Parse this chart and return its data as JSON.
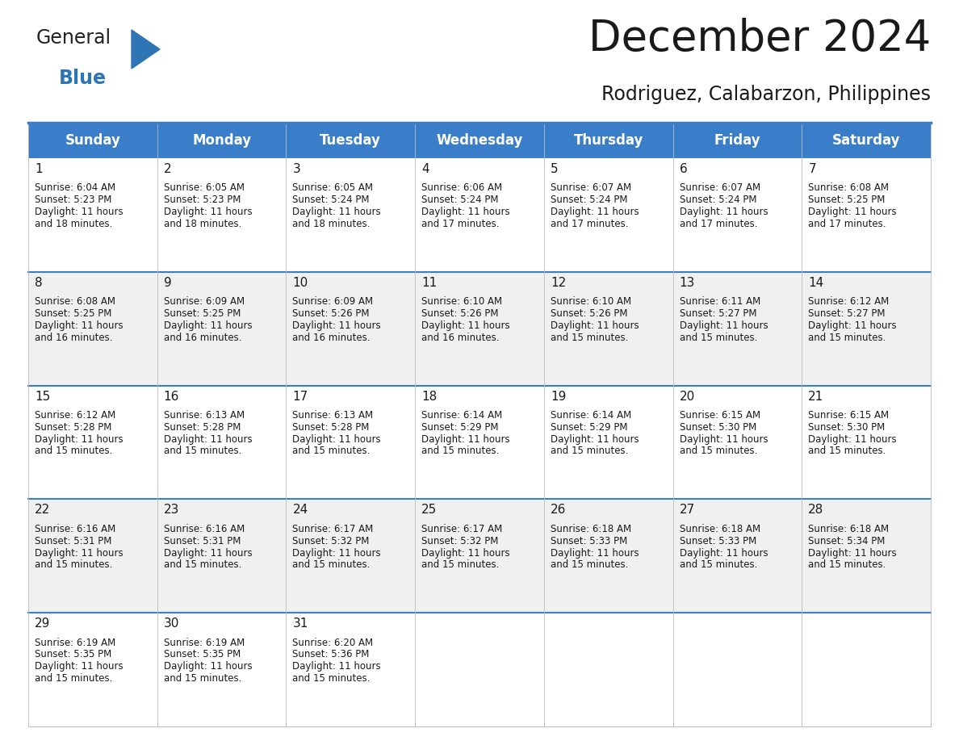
{
  "title": "December 2024",
  "subtitle": "Rodriguez, Calabarzon, Philippines",
  "header_color": "#3A7DC9",
  "header_text_color": "#FFFFFF",
  "cell_bg_white": "#FFFFFF",
  "cell_bg_grey": "#F0F0F0",
  "border_color": "#3A7DC9",
  "grid_line_color": "#BBBBBB",
  "text_color": "#1a1a1a",
  "day_headers": [
    "Sunday",
    "Monday",
    "Tuesday",
    "Wednesday",
    "Thursday",
    "Friday",
    "Saturday"
  ],
  "days_data": [
    {
      "day": 1,
      "col": 0,
      "row": 0,
      "sunrise": "6:04 AM",
      "sunset": "5:23 PM",
      "daylight_hours": 11,
      "daylight_minutes": 18
    },
    {
      "day": 2,
      "col": 1,
      "row": 0,
      "sunrise": "6:05 AM",
      "sunset": "5:23 PM",
      "daylight_hours": 11,
      "daylight_minutes": 18
    },
    {
      "day": 3,
      "col": 2,
      "row": 0,
      "sunrise": "6:05 AM",
      "sunset": "5:24 PM",
      "daylight_hours": 11,
      "daylight_minutes": 18
    },
    {
      "day": 4,
      "col": 3,
      "row": 0,
      "sunrise": "6:06 AM",
      "sunset": "5:24 PM",
      "daylight_hours": 11,
      "daylight_minutes": 17
    },
    {
      "day": 5,
      "col": 4,
      "row": 0,
      "sunrise": "6:07 AM",
      "sunset": "5:24 PM",
      "daylight_hours": 11,
      "daylight_minutes": 17
    },
    {
      "day": 6,
      "col": 5,
      "row": 0,
      "sunrise": "6:07 AM",
      "sunset": "5:24 PM",
      "daylight_hours": 11,
      "daylight_minutes": 17
    },
    {
      "day": 7,
      "col": 6,
      "row": 0,
      "sunrise": "6:08 AM",
      "sunset": "5:25 PM",
      "daylight_hours": 11,
      "daylight_minutes": 17
    },
    {
      "day": 8,
      "col": 0,
      "row": 1,
      "sunrise": "6:08 AM",
      "sunset": "5:25 PM",
      "daylight_hours": 11,
      "daylight_minutes": 16
    },
    {
      "day": 9,
      "col": 1,
      "row": 1,
      "sunrise": "6:09 AM",
      "sunset": "5:25 PM",
      "daylight_hours": 11,
      "daylight_minutes": 16
    },
    {
      "day": 10,
      "col": 2,
      "row": 1,
      "sunrise": "6:09 AM",
      "sunset": "5:26 PM",
      "daylight_hours": 11,
      "daylight_minutes": 16
    },
    {
      "day": 11,
      "col": 3,
      "row": 1,
      "sunrise": "6:10 AM",
      "sunset": "5:26 PM",
      "daylight_hours": 11,
      "daylight_minutes": 16
    },
    {
      "day": 12,
      "col": 4,
      "row": 1,
      "sunrise": "6:10 AM",
      "sunset": "5:26 PM",
      "daylight_hours": 11,
      "daylight_minutes": 15
    },
    {
      "day": 13,
      "col": 5,
      "row": 1,
      "sunrise": "6:11 AM",
      "sunset": "5:27 PM",
      "daylight_hours": 11,
      "daylight_minutes": 15
    },
    {
      "day": 14,
      "col": 6,
      "row": 1,
      "sunrise": "6:12 AM",
      "sunset": "5:27 PM",
      "daylight_hours": 11,
      "daylight_minutes": 15
    },
    {
      "day": 15,
      "col": 0,
      "row": 2,
      "sunrise": "6:12 AM",
      "sunset": "5:28 PM",
      "daylight_hours": 11,
      "daylight_minutes": 15
    },
    {
      "day": 16,
      "col": 1,
      "row": 2,
      "sunrise": "6:13 AM",
      "sunset": "5:28 PM",
      "daylight_hours": 11,
      "daylight_minutes": 15
    },
    {
      "day": 17,
      "col": 2,
      "row": 2,
      "sunrise": "6:13 AM",
      "sunset": "5:28 PM",
      "daylight_hours": 11,
      "daylight_minutes": 15
    },
    {
      "day": 18,
      "col": 3,
      "row": 2,
      "sunrise": "6:14 AM",
      "sunset": "5:29 PM",
      "daylight_hours": 11,
      "daylight_minutes": 15
    },
    {
      "day": 19,
      "col": 4,
      "row": 2,
      "sunrise": "6:14 AM",
      "sunset": "5:29 PM",
      "daylight_hours": 11,
      "daylight_minutes": 15
    },
    {
      "day": 20,
      "col": 5,
      "row": 2,
      "sunrise": "6:15 AM",
      "sunset": "5:30 PM",
      "daylight_hours": 11,
      "daylight_minutes": 15
    },
    {
      "day": 21,
      "col": 6,
      "row": 2,
      "sunrise": "6:15 AM",
      "sunset": "5:30 PM",
      "daylight_hours": 11,
      "daylight_minutes": 15
    },
    {
      "day": 22,
      "col": 0,
      "row": 3,
      "sunrise": "6:16 AM",
      "sunset": "5:31 PM",
      "daylight_hours": 11,
      "daylight_minutes": 15
    },
    {
      "day": 23,
      "col": 1,
      "row": 3,
      "sunrise": "6:16 AM",
      "sunset": "5:31 PM",
      "daylight_hours": 11,
      "daylight_minutes": 15
    },
    {
      "day": 24,
      "col": 2,
      "row": 3,
      "sunrise": "6:17 AM",
      "sunset": "5:32 PM",
      "daylight_hours": 11,
      "daylight_minutes": 15
    },
    {
      "day": 25,
      "col": 3,
      "row": 3,
      "sunrise": "6:17 AM",
      "sunset": "5:32 PM",
      "daylight_hours": 11,
      "daylight_minutes": 15
    },
    {
      "day": 26,
      "col": 4,
      "row": 3,
      "sunrise": "6:18 AM",
      "sunset": "5:33 PM",
      "daylight_hours": 11,
      "daylight_minutes": 15
    },
    {
      "day": 27,
      "col": 5,
      "row": 3,
      "sunrise": "6:18 AM",
      "sunset": "5:33 PM",
      "daylight_hours": 11,
      "daylight_minutes": 15
    },
    {
      "day": 28,
      "col": 6,
      "row": 3,
      "sunrise": "6:18 AM",
      "sunset": "5:34 PM",
      "daylight_hours": 11,
      "daylight_minutes": 15
    },
    {
      "day": 29,
      "col": 0,
      "row": 4,
      "sunrise": "6:19 AM",
      "sunset": "5:35 PM",
      "daylight_hours": 11,
      "daylight_minutes": 15
    },
    {
      "day": 30,
      "col": 1,
      "row": 4,
      "sunrise": "6:19 AM",
      "sunset": "5:35 PM",
      "daylight_hours": 11,
      "daylight_minutes": 15
    },
    {
      "day": 31,
      "col": 2,
      "row": 4,
      "sunrise": "6:20 AM",
      "sunset": "5:36 PM",
      "daylight_hours": 11,
      "daylight_minutes": 15
    }
  ],
  "num_rows": 5,
  "num_cols": 7,
  "logo_general_color": "#222222",
  "logo_blue_color": "#2E75B6",
  "title_fontsize": 38,
  "subtitle_fontsize": 17,
  "header_fontsize": 12,
  "day_num_fontsize": 11,
  "cell_text_fontsize": 8.5
}
